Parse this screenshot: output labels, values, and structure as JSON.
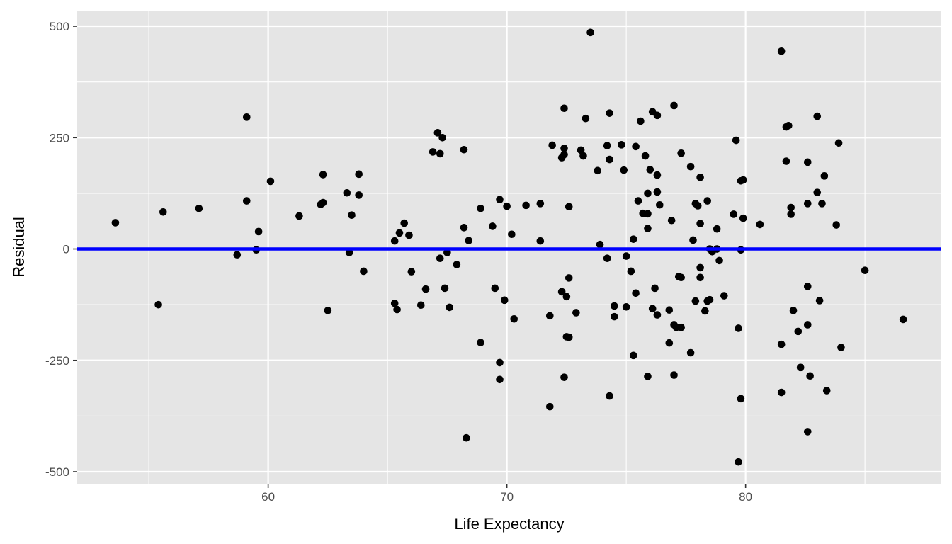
{
  "chart_data": {
    "type": "scatter",
    "title": "",
    "xlabel": "Life Expectancy",
    "ylabel": "Residual",
    "xlim": [
      52.0,
      88.2
    ],
    "ylim": [
      -527,
      535
    ],
    "x_ticks": [
      60,
      70,
      80
    ],
    "y_ticks": [
      500,
      250,
      0,
      -250,
      -500
    ],
    "x_tick_labels": [
      "60",
      "70",
      "80"
    ],
    "y_tick_labels": [
      "500",
      "250",
      "0",
      "-250",
      "-500"
    ],
    "x_minor": [
      55,
      65,
      75,
      85
    ],
    "y_minor": [
      375,
      125,
      -125,
      -375
    ],
    "grid": true,
    "legend": "none",
    "colors": {
      "panel": "#e5e5e5",
      "grid": "#ffffff",
      "points": "#000000",
      "ref_line": "#0000ff",
      "tick_text": "#4d4d4d",
      "tick_mark": "#333333"
    },
    "reference_line": {
      "y": 0
    },
    "points": [
      [
        53.6,
        59
      ],
      [
        55.4,
        -125
      ],
      [
        55.6,
        83
      ],
      [
        57.1,
        91
      ],
      [
        58.7,
        -13
      ],
      [
        59.1,
        296
      ],
      [
        59.1,
        108
      ],
      [
        59.5,
        -2
      ],
      [
        59.6,
        39
      ],
      [
        60.1,
        152
      ],
      [
        61.3,
        74
      ],
      [
        62.2,
        100
      ],
      [
        62.3,
        104
      ],
      [
        62.3,
        167
      ],
      [
        62.5,
        -138
      ],
      [
        63.3,
        126
      ],
      [
        63.4,
        -8
      ],
      [
        63.5,
        76
      ],
      [
        63.8,
        121
      ],
      [
        63.8,
        168
      ],
      [
        64.0,
        -50
      ],
      [
        65.3,
        18
      ],
      [
        65.3,
        -122
      ],
      [
        65.4,
        -136
      ],
      [
        65.5,
        36
      ],
      [
        65.7,
        58
      ],
      [
        65.9,
        31
      ],
      [
        66.0,
        -51
      ],
      [
        66.4,
        -126
      ],
      [
        66.6,
        -90
      ],
      [
        66.9,
        218
      ],
      [
        67.1,
        261
      ],
      [
        67.2,
        214
      ],
      [
        67.3,
        250
      ],
      [
        67.2,
        -21
      ],
      [
        67.4,
        -88
      ],
      [
        67.5,
        -8
      ],
      [
        67.6,
        -131
      ],
      [
        67.9,
        -35
      ],
      [
        68.2,
        223
      ],
      [
        68.2,
        48
      ],
      [
        68.3,
        -424
      ],
      [
        68.4,
        19
      ],
      [
        68.9,
        91
      ],
      [
        68.9,
        -210
      ],
      [
        69.4,
        51
      ],
      [
        69.5,
        -88
      ],
      [
        69.7,
        111
      ],
      [
        69.7,
        -255
      ],
      [
        69.7,
        -293
      ],
      [
        69.9,
        -115
      ],
      [
        70.0,
        96
      ],
      [
        70.2,
        33
      ],
      [
        70.3,
        -157
      ],
      [
        70.8,
        98
      ],
      [
        71.4,
        102
      ],
      [
        71.4,
        18
      ],
      [
        71.8,
        -150
      ],
      [
        71.8,
        -354
      ],
      [
        71.9,
        233
      ],
      [
        72.3,
        205
      ],
      [
        72.4,
        226
      ],
      [
        72.4,
        212
      ],
      [
        72.4,
        316
      ],
      [
        72.3,
        -96
      ],
      [
        72.4,
        -288
      ],
      [
        72.5,
        -107
      ],
      [
        72.5,
        -197
      ],
      [
        72.6,
        -198
      ],
      [
        72.6,
        95
      ],
      [
        72.6,
        -65
      ],
      [
        72.9,
        -143
      ],
      [
        73.1,
        222
      ],
      [
        73.2,
        209
      ],
      [
        73.3,
        293
      ],
      [
        73.5,
        486
      ],
      [
        73.8,
        176
      ],
      [
        73.9,
        10
      ],
      [
        74.2,
        -21
      ],
      [
        74.2,
        232
      ],
      [
        74.3,
        201
      ],
      [
        74.3,
        305
      ],
      [
        74.3,
        -330
      ],
      [
        74.5,
        -128
      ],
      [
        74.5,
        -152
      ],
      [
        74.8,
        234
      ],
      [
        74.9,
        177
      ],
      [
        75.0,
        -16
      ],
      [
        75.0,
        -130
      ],
      [
        75.2,
        -50
      ],
      [
        75.3,
        22
      ],
      [
        75.3,
        -239
      ],
      [
        75.4,
        -99
      ],
      [
        75.4,
        230
      ],
      [
        75.5,
        108
      ],
      [
        75.6,
        287
      ],
      [
        75.7,
        80
      ],
      [
        75.8,
        209
      ],
      [
        75.9,
        46
      ],
      [
        75.9,
        79
      ],
      [
        75.9,
        125
      ],
      [
        75.9,
        -286
      ],
      [
        76.0,
        178
      ],
      [
        76.1,
        308
      ],
      [
        76.1,
        -134
      ],
      [
        76.2,
        -88
      ],
      [
        76.3,
        128
      ],
      [
        76.3,
        166
      ],
      [
        76.3,
        300
      ],
      [
        76.3,
        -148
      ],
      [
        76.4,
        99
      ],
      [
        76.8,
        -211
      ],
      [
        76.8,
        -137
      ],
      [
        76.9,
        64
      ],
      [
        77.0,
        322
      ],
      [
        77.0,
        -283
      ],
      [
        77.0,
        -170
      ],
      [
        77.1,
        -176
      ],
      [
        77.2,
        -62
      ],
      [
        77.3,
        -64
      ],
      [
        77.3,
        215
      ],
      [
        77.3,
        -176
      ],
      [
        77.7,
        185
      ],
      [
        77.7,
        -233
      ],
      [
        77.8,
        20
      ],
      [
        77.9,
        -117
      ],
      [
        77.9,
        102
      ],
      [
        78.0,
        97
      ],
      [
        78.1,
        -42
      ],
      [
        78.1,
        -64
      ],
      [
        78.1,
        57
      ],
      [
        78.1,
        161
      ],
      [
        78.3,
        -139
      ],
      [
        78.4,
        108
      ],
      [
        78.4,
        -117
      ],
      [
        78.5,
        0
      ],
      [
        78.5,
        -114
      ],
      [
        78.6,
        -6
      ],
      [
        78.8,
        0
      ],
      [
        78.8,
        45
      ],
      [
        78.9,
        -26
      ],
      [
        79.1,
        -105
      ],
      [
        79.5,
        78
      ],
      [
        79.6,
        244
      ],
      [
        79.7,
        -178
      ],
      [
        79.7,
        -478
      ],
      [
        79.8,
        153
      ],
      [
        79.8,
        -336
      ],
      [
        79.8,
        -2
      ],
      [
        79.9,
        69
      ],
      [
        79.9,
        155
      ],
      [
        80.6,
        55
      ],
      [
        81.5,
        444
      ],
      [
        81.5,
        -214
      ],
      [
        81.5,
        -322
      ],
      [
        81.7,
        197
      ],
      [
        81.7,
        274
      ],
      [
        81.8,
        277
      ],
      [
        81.9,
        78
      ],
      [
        81.9,
        93
      ],
      [
        82.0,
        -138
      ],
      [
        82.2,
        -185
      ],
      [
        82.3,
        -266
      ],
      [
        82.6,
        195
      ],
      [
        82.6,
        102
      ],
      [
        82.6,
        -84
      ],
      [
        82.6,
        -170
      ],
      [
        82.6,
        -410
      ],
      [
        82.7,
        -285
      ],
      [
        83.0,
        298
      ],
      [
        83.0,
        127
      ],
      [
        83.1,
        -116
      ],
      [
        83.2,
        102
      ],
      [
        83.3,
        164
      ],
      [
        83.4,
        -318
      ],
      [
        83.8,
        54
      ],
      [
        83.9,
        238
      ],
      [
        84.0,
        -221
      ],
      [
        85.0,
        -48
      ],
      [
        86.6,
        -158
      ]
    ]
  }
}
